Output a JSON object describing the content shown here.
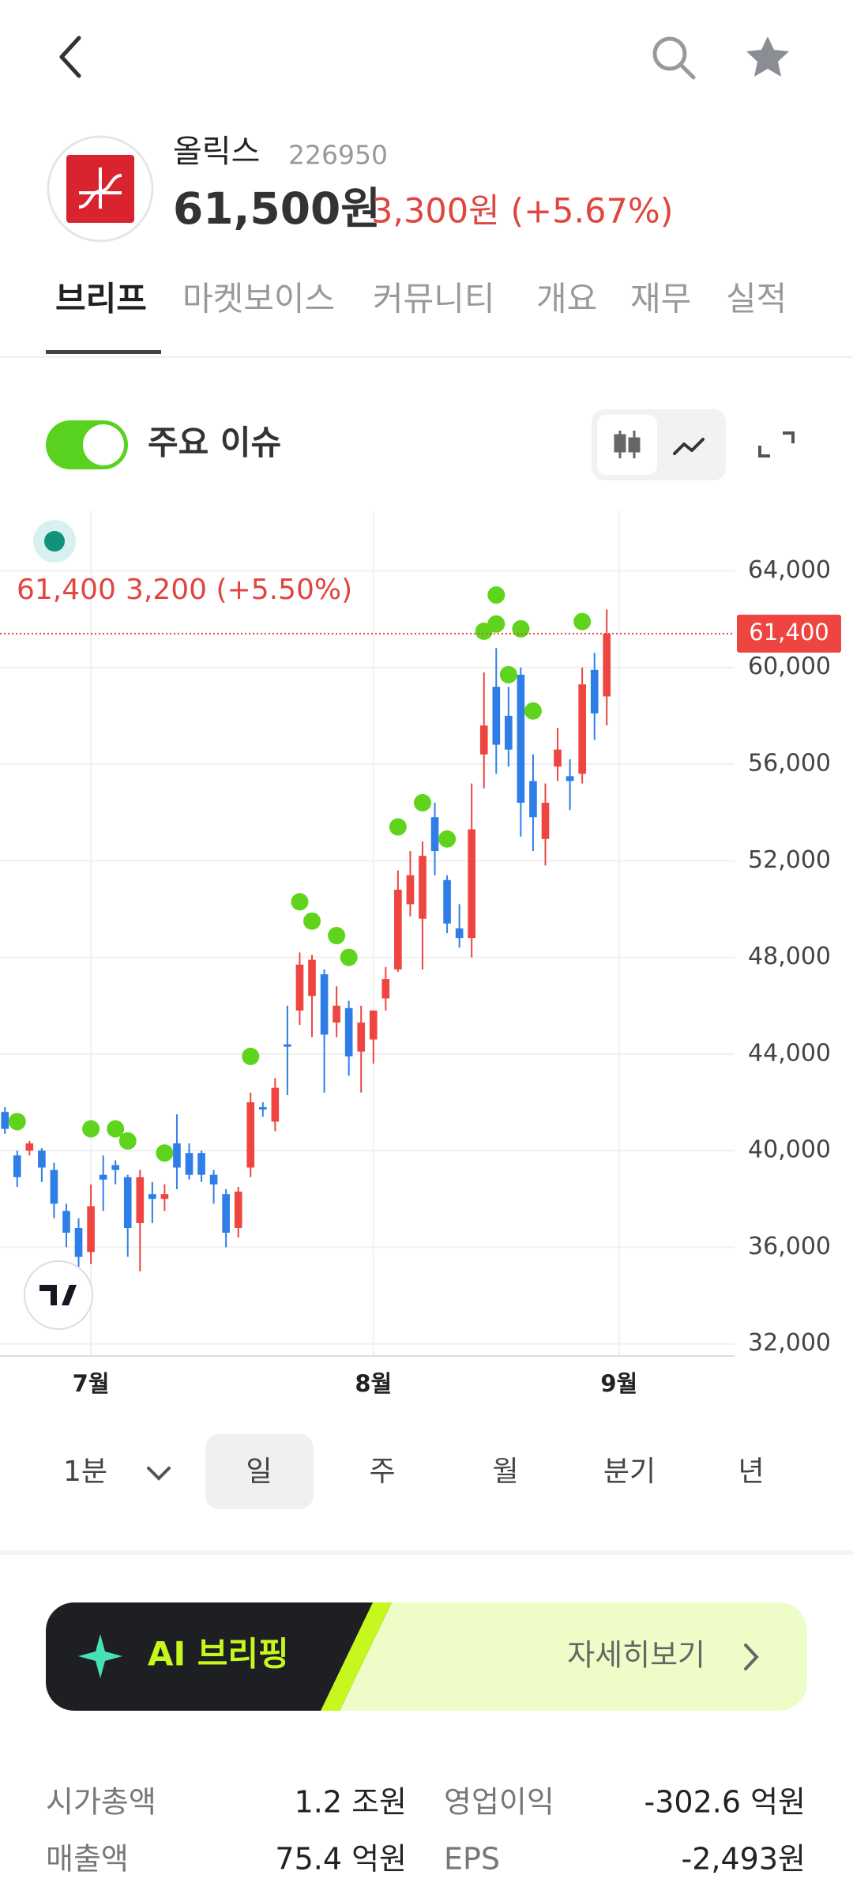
{
  "header": {
    "name": "올릭스",
    "code": "226950",
    "price": "61,500원",
    "change": "3,300원 (+5.67%)"
  },
  "tabs": [
    "브리프",
    "마켓보이스",
    "커뮤니티",
    "개요",
    "재무",
    "실적"
  ],
  "toggle_label": "주요 이슈",
  "chart_data": {
    "type": "candlestick",
    "legend": {
      "price": "61,400",
      "change": "3,200 (+5.50%)"
    },
    "last_price": {
      "value": 61400,
      "label": "61,400"
    },
    "x": [
      0,
      1,
      2,
      3,
      4,
      5,
      6,
      7,
      8,
      9,
      10,
      11,
      12,
      13,
      14,
      15,
      16,
      17,
      18,
      19,
      20,
      21,
      22,
      23,
      24,
      25,
      26,
      27,
      28,
      29,
      30,
      31,
      32,
      33,
      34,
      35,
      36,
      37,
      38,
      39,
      40,
      41,
      42,
      43,
      44,
      45,
      46,
      47,
      48,
      49
    ],
    "open": [
      41600,
      39800,
      40000,
      40000,
      39200,
      37500,
      36800,
      35800,
      39000,
      39400,
      38900,
      37000,
      38200,
      38000,
      40300,
      39900,
      39900,
      39000,
      38200,
      36800,
      39300,
      41800,
      41200,
      44400,
      45800,
      46400,
      47300,
      45300,
      45900,
      44100,
      44600,
      46300,
      47500,
      50200,
      49600,
      53800,
      51200,
      49200,
      48800,
      56400,
      59200,
      58000,
      59700,
      55300,
      52900,
      55900,
      55500,
      55600,
      59900,
      58800
    ],
    "high": [
      41800,
      40000,
      40400,
      40100,
      39500,
      37800,
      37200,
      38600,
      39800,
      39600,
      39000,
      39200,
      38700,
      38600,
      41500,
      40300,
      40000,
      39200,
      38400,
      38500,
      42400,
      42000,
      43000,
      46000,
      48200,
      48100,
      47500,
      46800,
      46200,
      46000,
      45600,
      47600,
      51600,
      52400,
      52800,
      54400,
      51400,
      50200,
      55200,
      59800,
      60800,
      59200,
      60000,
      56400,
      55200,
      57500,
      56200,
      60000,
      60600,
      62400
    ],
    "low": [
      40700,
      38500,
      39800,
      38700,
      37200,
      36000,
      35200,
      35300,
      37500,
      38600,
      35600,
      35000,
      37000,
      37500,
      38400,
      38800,
      38700,
      37800,
      36000,
      36400,
      38900,
      41400,
      40800,
      42300,
      45200,
      44700,
      42400,
      44700,
      43100,
      42400,
      43600,
      45800,
      47400,
      49700,
      47500,
      51400,
      49000,
      48400,
      48000,
      55000,
      55600,
      55900,
      53000,
      52400,
      51800,
      55300,
      54100,
      55200,
      57000,
      57600
    ],
    "close": [
      40900,
      38900,
      40300,
      39300,
      37800,
      36600,
      35600,
      37700,
      38800,
      39200,
      36800,
      38900,
      38000,
      38200,
      39300,
      39000,
      39000,
      38600,
      36600,
      38300,
      42000,
      41700,
      42600,
      44300,
      47700,
      47900,
      44800,
      46000,
      43900,
      45300,
      45800,
      47100,
      50800,
      51400,
      52200,
      52400,
      49400,
      48800,
      53300,
      57600,
      56800,
      56600,
      54400,
      53800,
      54400,
      56600,
      55300,
      59300,
      58100,
      61400
    ],
    "markers": {
      "x": [
        1,
        7,
        9,
        10,
        13,
        20,
        24,
        25,
        27,
        28,
        32,
        34,
        36,
        39,
        40,
        40,
        42,
        41,
        43,
        47
      ],
      "values": [
        41200,
        40900,
        40900,
        40400,
        39900,
        43900,
        50300,
        49500,
        48900,
        48000,
        53400,
        54400,
        52900,
        61500,
        63000,
        61800,
        61600,
        59700,
        58200,
        61900
      ]
    },
    "xlim": [
      -0.4,
      59.4
    ],
    "xticks": [
      {
        "value": 7,
        "label": "7월"
      },
      {
        "value": 30,
        "label": "8월"
      },
      {
        "value": 50,
        "label": "9월"
      }
    ],
    "ylim": [
      31500,
      66500
    ],
    "yticks": [
      {
        "value": 32000,
        "label": "32,000"
      },
      {
        "value": 36000,
        "label": "36,000"
      },
      {
        "value": 40000,
        "label": "40,000"
      },
      {
        "value": 44000,
        "label": "44,000"
      },
      {
        "value": 48000,
        "label": "48,000"
      },
      {
        "value": 52000,
        "label": "52,000"
      },
      {
        "value": 56000,
        "label": "56,000"
      },
      {
        "value": 60000,
        "label": "60,000"
      },
      {
        "value": 64000,
        "label": "64,000"
      }
    ],
    "grid": true,
    "up_color": "#ee4540",
    "down_color": "#2f7ee8",
    "marker_color": "#5fd41c"
  },
  "periods": {
    "interval": "1분",
    "options": [
      "일",
      "주",
      "월",
      "분기",
      "년"
    ]
  },
  "ai_banner": {
    "title": "AI 브리핑",
    "action": "자세히보기"
  },
  "stats": [
    [
      "시가총액",
      "1.2 조원",
      "영업이익",
      "-302.6 억원"
    ],
    [
      "매출액",
      "75.4 억원",
      "EPS",
      "-2,493원"
    ]
  ]
}
